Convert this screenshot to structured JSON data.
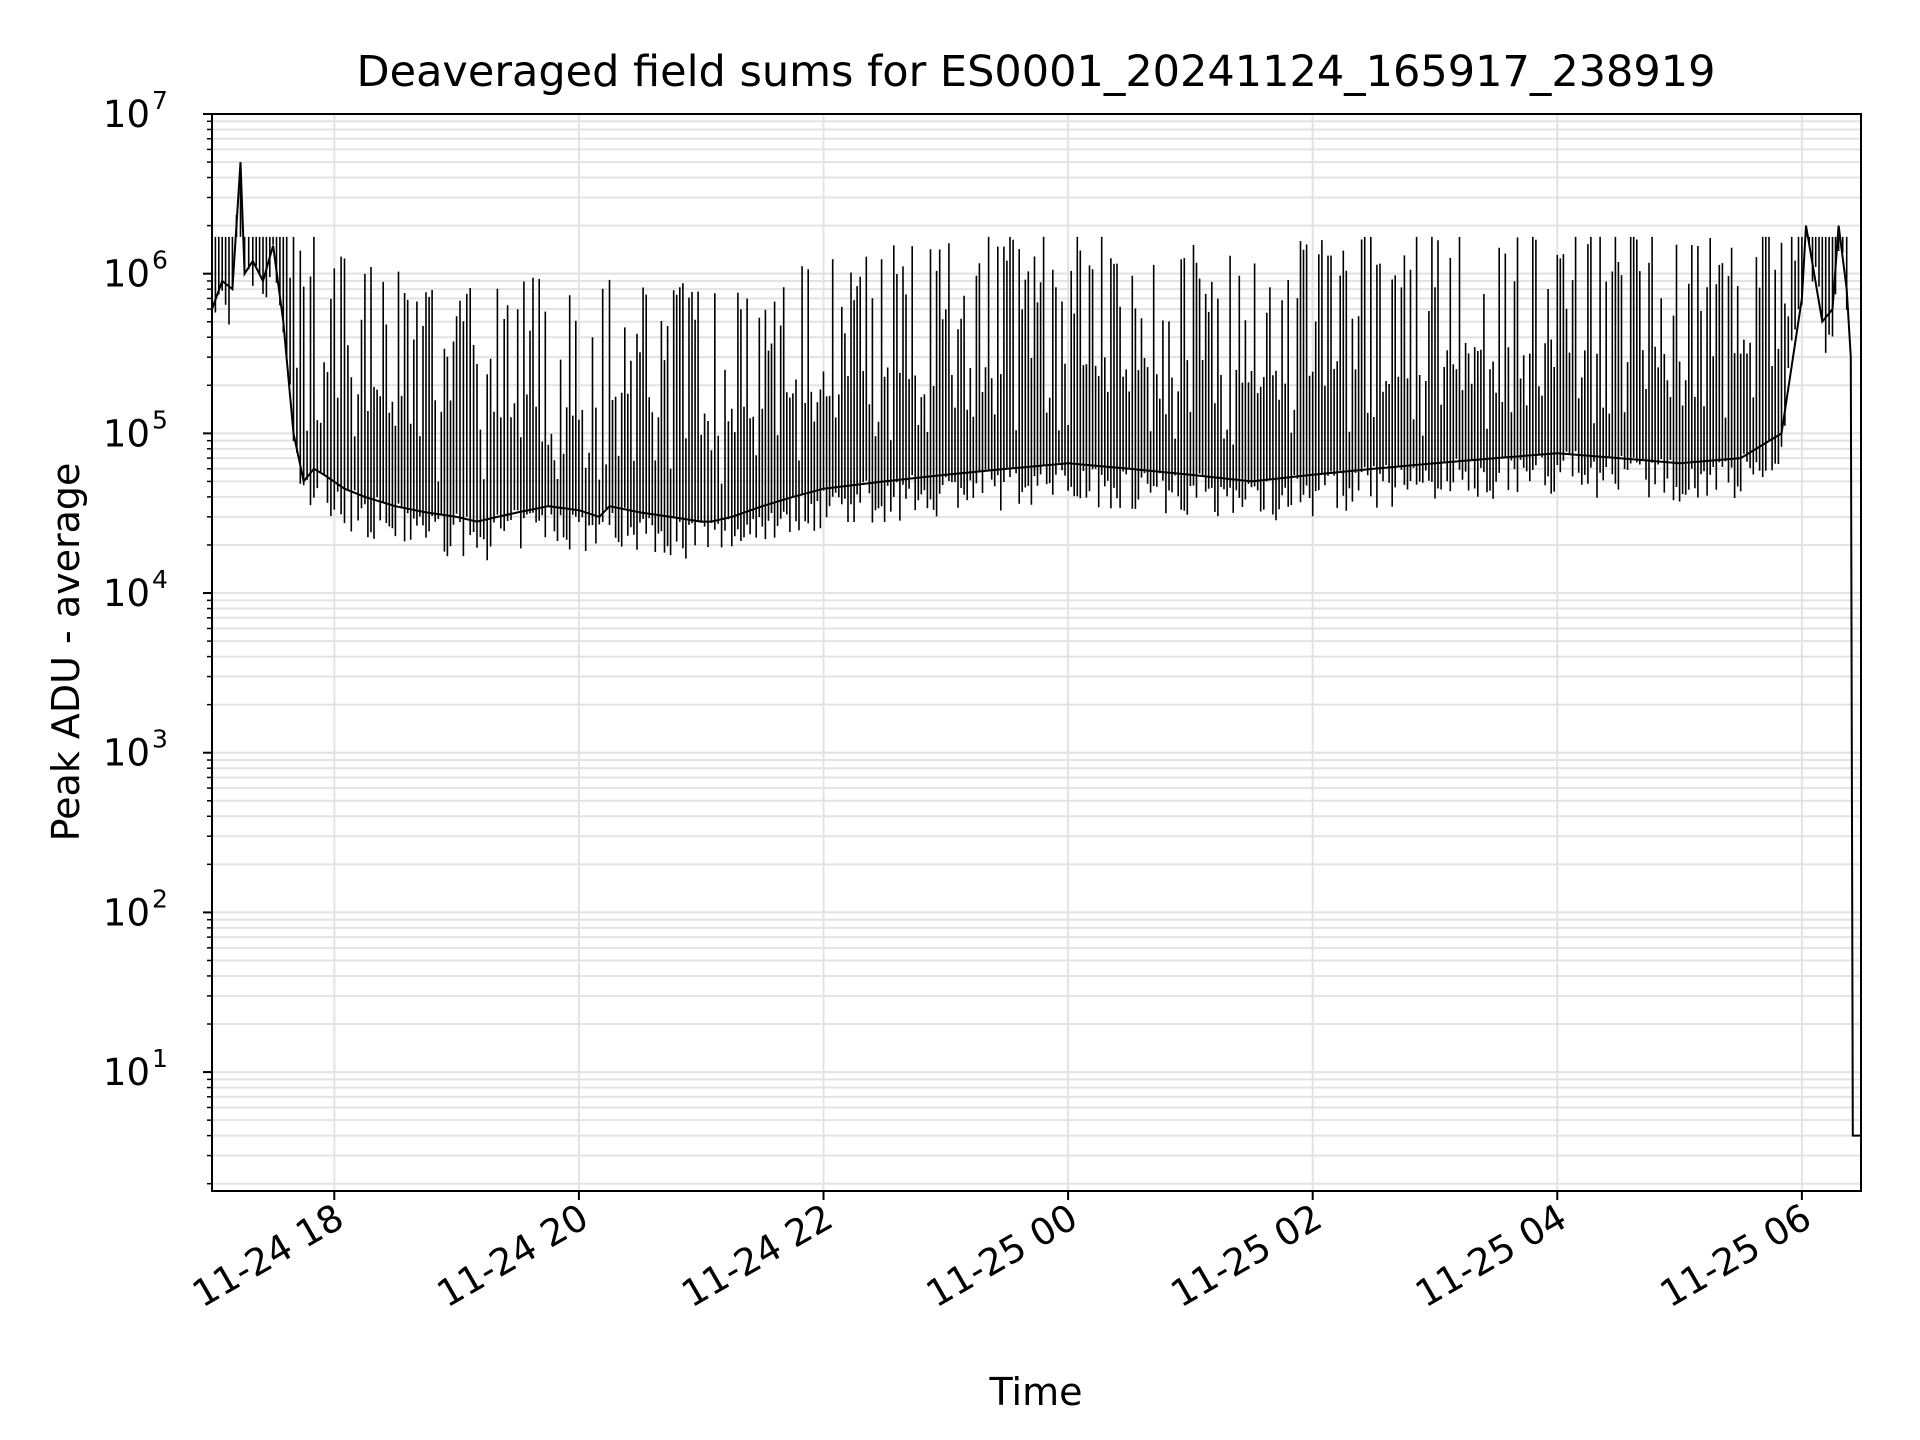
{
  "chart_data": {
    "type": "line",
    "title": "Deaveraged field sums for ES0001_20241124_165917_238919",
    "xlabel": "Time",
    "ylabel": "Peak ADU - average",
    "yscale": "log",
    "ylim": [
      1.8,
      10000000
    ],
    "xlim": [
      "2024-11-24 17:00",
      "2024-11-25 06:29"
    ],
    "grid": true,
    "x_ticks": [
      {
        "value": "2024-11-24 18:00",
        "label": "11-24 18"
      },
      {
        "value": "2024-11-24 20:00",
        "label": "11-24 20"
      },
      {
        "value": "2024-11-24 22:00",
        "label": "11-24 22"
      },
      {
        "value": "2024-11-25 00:00",
        "label": "11-25 00"
      },
      {
        "value": "2024-11-25 02:00",
        "label": "11-25 02"
      },
      {
        "value": "2024-11-25 04:00",
        "label": "11-25 04"
      },
      {
        "value": "2024-11-25 06:00",
        "label": "11-25 06"
      }
    ],
    "y_ticks": [
      {
        "value": 10,
        "base": "10",
        "exp": "1"
      },
      {
        "value": 100,
        "base": "10",
        "exp": "2"
      },
      {
        "value": 1000,
        "base": "10",
        "exp": "3"
      },
      {
        "value": 10000,
        "base": "10",
        "exp": "4"
      },
      {
        "value": 100000,
        "base": "10",
        "exp": "5"
      },
      {
        "value": 1000000,
        "base": "10",
        "exp": "6"
      },
      {
        "value": 10000000,
        "base": "10",
        "exp": "7"
      }
    ],
    "series": [
      {
        "color": "#000000",
        "x": [
          "2024-11-24 17:00",
          "2024-11-24 17:05",
          "2024-11-24 17:10",
          "2024-11-24 17:14",
          "2024-11-24 17:16",
          "2024-11-24 17:20",
          "2024-11-24 17:25",
          "2024-11-24 17:30",
          "2024-11-24 17:35",
          "2024-11-24 17:40",
          "2024-11-24 17:45",
          "2024-11-24 17:50",
          "2024-11-24 17:55",
          "2024-11-24 18:05",
          "2024-11-24 18:15",
          "2024-11-24 18:30",
          "2024-11-24 18:45",
          "2024-11-24 19:00",
          "2024-11-24 19:10",
          "2024-11-24 19:20",
          "2024-11-24 19:30",
          "2024-11-24 19:45",
          "2024-11-24 20:00",
          "2024-11-24 20:10",
          "2024-11-24 20:15",
          "2024-11-24 20:30",
          "2024-11-24 20:45",
          "2024-11-24 21:00",
          "2024-11-24 21:05",
          "2024-11-24 21:15",
          "2024-11-24 21:30",
          "2024-11-24 21:45",
          "2024-11-24 22:00",
          "2024-11-24 22:30",
          "2024-11-24 23:00",
          "2024-11-24 23:30",
          "2024-11-25 00:00",
          "2024-11-25 00:30",
          "2024-11-25 01:00",
          "2024-11-25 01:30",
          "2024-11-25 02:00",
          "2024-11-25 02:30",
          "2024-11-25 03:00",
          "2024-11-25 03:30",
          "2024-11-25 04:00",
          "2024-11-25 04:30",
          "2024-11-25 05:00",
          "2024-11-25 05:30",
          "2024-11-25 05:50",
          "2024-11-25 06:00",
          "2024-11-25 06:02",
          "2024-11-25 06:10",
          "2024-11-25 06:15",
          "2024-11-25 06:18",
          "2024-11-25 06:22",
          "2024-11-25 06:24",
          "2024-11-25 06:25",
          "2024-11-25 06:26",
          "2024-11-25 06:29"
        ],
        "y": [
          600000,
          900000,
          800000,
          5000000,
          1000000,
          1200000,
          900000,
          1500000,
          500000,
          100000,
          50000,
          60000,
          55000,
          45000,
          40000,
          35000,
          32000,
          30000,
          28000,
          30000,
          32000,
          35000,
          33000,
          30000,
          35000,
          32000,
          30000,
          28000,
          28000,
          30000,
          35000,
          40000,
          45000,
          50000,
          55000,
          60000,
          65000,
          60000,
          55000,
          50000,
          55000,
          60000,
          65000,
          70000,
          75000,
          70000,
          65000,
          70000,
          100000,
          700000,
          2000000,
          500000,
          600000,
          2000000,
          800000,
          300000,
          4,
          4,
          4
        ]
      }
    ]
  }
}
